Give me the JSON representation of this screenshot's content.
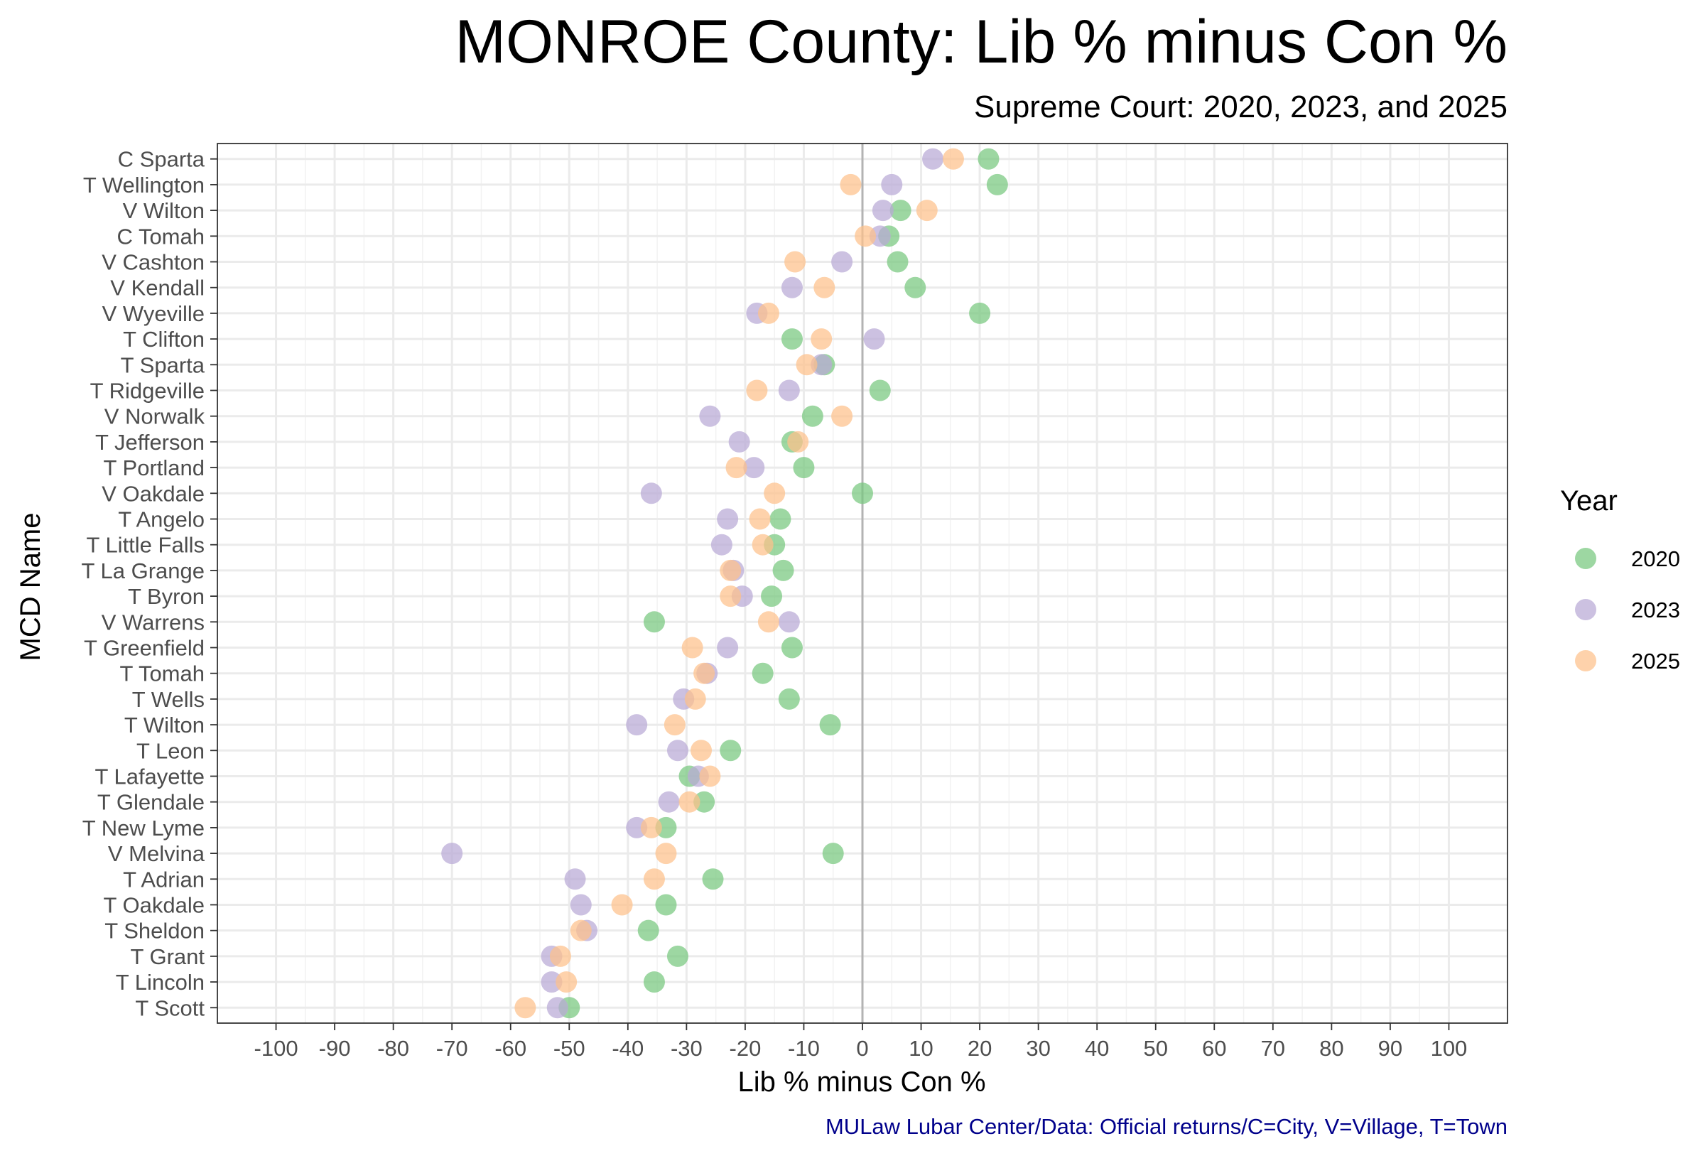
{
  "chart_data": {
    "type": "scatter",
    "title": "MONROE County: Lib % minus Con %",
    "subtitle": "Supreme Court: 2020, 2023, and 2025",
    "xlabel": "Lib % minus Con %",
    "ylabel": "MCD Name",
    "caption": "MULaw Lubar Center/Data: Official returns/C=City, V=Village, T=Town",
    "xlim": [
      -110,
      110
    ],
    "x_ticks": [
      -100,
      -90,
      -80,
      -70,
      -60,
      -50,
      -40,
      -30,
      -20,
      -10,
      0,
      10,
      20,
      30,
      40,
      50,
      60,
      70,
      80,
      90,
      100
    ],
    "x_tick_labels": [
      "-100",
      "-90",
      "-80",
      "-70",
      "-60",
      "-50",
      "-40",
      "-30",
      "-20",
      "-10",
      "0",
      "10",
      "20",
      "30",
      "40",
      "50",
      "60",
      "70",
      "80",
      "90",
      "100"
    ],
    "reference_line_x": 0,
    "grid": true,
    "legend": {
      "title": "Year",
      "placement": "right"
    },
    "categories": [
      "C Sparta",
      "T Wellington",
      "V Wilton",
      "C Tomah",
      "V Cashton",
      "V Kendall",
      "V Wyeville",
      "T Clifton",
      "T Sparta",
      "T Ridgeville",
      "V Norwalk",
      "T Jefferson",
      "T Portland",
      "V Oakdale",
      "T Angelo",
      "T Little Falls",
      "T La Grange",
      "T Byron",
      "V Warrens",
      "T Greenfield",
      "T Tomah",
      "T Wells",
      "T Wilton",
      "T Leon",
      "T Lafayette",
      "T Glendale",
      "T New Lyme",
      "V Melvina",
      "T Adrian",
      "T Oakdale",
      "T Sheldon",
      "T Grant",
      "T Lincoln",
      "T Scott"
    ],
    "series": [
      {
        "name": "2020",
        "color": "#77c87e",
        "values": [
          21.5,
          23,
          6.5,
          4.5,
          6,
          9,
          20,
          -12,
          -6.5,
          3,
          -8.5,
          -12,
          -10,
          0,
          -14,
          -15,
          -13.5,
          -15.5,
          -35.5,
          -12,
          -17,
          -12.5,
          -5.5,
          -22.5,
          -29.5,
          -27,
          -33.5,
          -5,
          -25.5,
          -33.5,
          -36.5,
          -31.5,
          -35.5,
          -50
        ]
      },
      {
        "name": "2023",
        "color": "#b8a9d6",
        "values": [
          12,
          5,
          3.5,
          3,
          -3.5,
          -12,
          -18,
          2,
          -7,
          -12.5,
          -26,
          -21,
          -18.5,
          -36,
          -23,
          -24,
          -22,
          -20.5,
          -12.5,
          -23,
          -26.5,
          -30.5,
          -38.5,
          -31.5,
          -28,
          -33,
          -38.5,
          -70,
          -49,
          -48,
          -47,
          -53,
          -53,
          -52
        ]
      },
      {
        "name": "2025",
        "color": "#fdc08a",
        "values": [
          15.5,
          -2,
          11,
          0.5,
          -11.5,
          -6.5,
          -16,
          -7,
          -9.5,
          -18,
          -3.5,
          -11,
          -21.5,
          -15,
          -17.5,
          -17,
          -22.5,
          -22.5,
          -16,
          -29,
          -27,
          -28.5,
          -32,
          -27.5,
          -26,
          -29.5,
          -36,
          -33.5,
          -35.5,
          -41,
          -48,
          -51.5,
          -50.5,
          -57.5
        ]
      }
    ]
  }
}
